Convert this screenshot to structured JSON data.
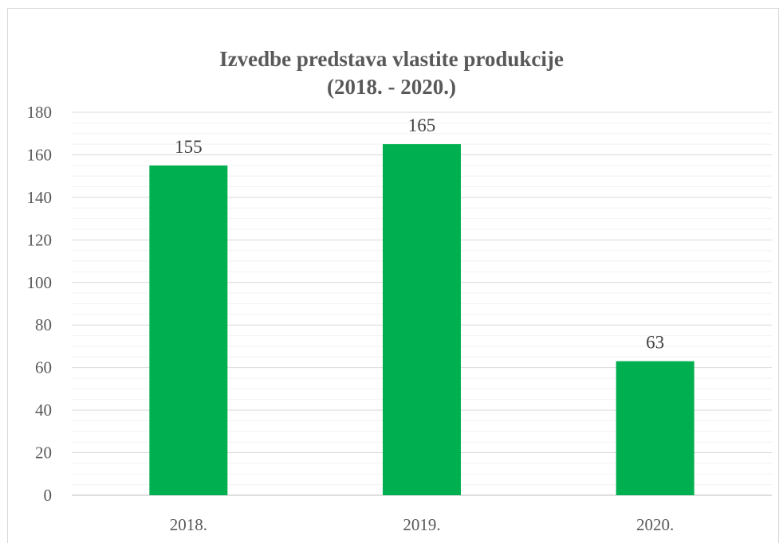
{
  "chart_data": {
    "type": "bar",
    "title_line1": "Izvedbe predstava vlastite produkcije",
    "title_line2": "(2018. - 2020.)",
    "categories": [
      "2018.",
      "2019.",
      "2020."
    ],
    "values": [
      155,
      165,
      63
    ],
    "data_labels": [
      "155",
      "165",
      "63"
    ],
    "ylim": [
      0,
      180
    ],
    "yticks": [
      "0",
      "20",
      "40",
      "60",
      "80",
      "100",
      "120",
      "140",
      "160",
      "180"
    ],
    "grid": true,
    "legend": "none",
    "bar_color": "#00b050",
    "xlabel": "",
    "ylabel": ""
  }
}
